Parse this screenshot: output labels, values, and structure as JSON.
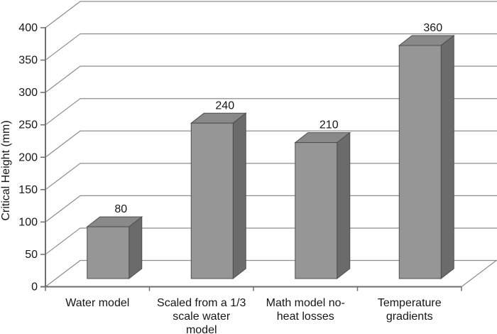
{
  "figure": {
    "background": "#ffffff"
  },
  "chart_data": {
    "type": "bar",
    "variant": "3d-column",
    "title": "",
    "xlabel": "",
    "ylabel": "Critical Height (mm)",
    "categories": [
      "Water model",
      "Scaled from a 1/3 scale water model",
      "Math model no-heat losses",
      "Temperature gradients"
    ],
    "category_lines": [
      [
        "Water model"
      ],
      [
        "Scaled from a 1/3",
        "scale water",
        "model"
      ],
      [
        "Math model no-",
        "heat losses"
      ],
      [
        "Temperature",
        "gradients"
      ]
    ],
    "values": [
      80,
      240,
      210,
      360
    ],
    "data_labels": [
      "80",
      "240",
      "210",
      "360"
    ],
    "ylim": [
      0,
      400
    ],
    "ytick_interval": 50,
    "yticks": [
      "400",
      "350",
      "300",
      "250",
      "200",
      "150",
      "100",
      "50",
      "0"
    ],
    "grid": true,
    "legend": "none",
    "colors": {
      "bar_front": "#969696",
      "bar_top": "#898989",
      "bar_side": "#6b6b6b",
      "bar_outline": "#4f4f4f",
      "gridline": "#8e8e8e",
      "axis": "#6e6e6e",
      "text": "#161616",
      "background": "#ffffff"
    }
  }
}
